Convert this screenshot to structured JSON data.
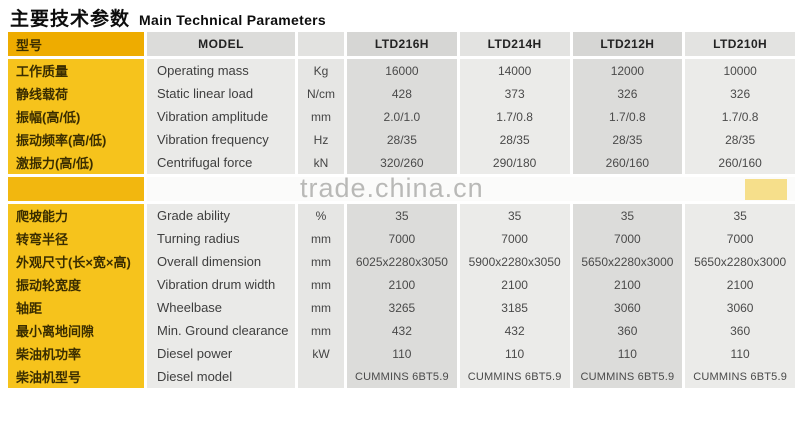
{
  "title": {
    "cn": "主要技术参数",
    "en": "Main Technical Parameters"
  },
  "watermark": "trade.china.cn",
  "colors": {
    "label_column_yellow": "#f6c31c",
    "header_yellow": "#eeac00",
    "column_gray_dark": "#dcdcda",
    "column_gray_light": "#ebebe9",
    "watermark_gray": "#b9b9b7"
  },
  "table": {
    "header": {
      "label_cn": "型号",
      "label_en": "MODEL",
      "unit_label": "",
      "models": [
        "LTD216H",
        "LTD214H",
        "LTD212H",
        "LTD210H"
      ]
    },
    "rows": [
      {
        "cn": "工作质量",
        "en": "Operating mass",
        "unit": "Kg",
        "values": [
          "16000",
          "14000",
          "12000",
          "10000"
        ]
      },
      {
        "cn": "静线载荷",
        "en": "Static linear load",
        "unit": "N/cm",
        "values": [
          "428",
          "373",
          "326",
          "326"
        ]
      },
      {
        "cn": "振幅(高/低)",
        "en": "Vibration amplitude",
        "unit": "mm",
        "values": [
          "2.0/1.0",
          "1.7/0.8",
          "1.7/0.8",
          "1.7/0.8"
        ]
      },
      {
        "cn": "振动频率(高/低)",
        "en": "Vibration frequency",
        "unit": "Hz",
        "values": [
          "28/35",
          "28/35",
          "28/35",
          "28/35"
        ]
      },
      {
        "cn": "激振力(高/低)",
        "en": "Centrifugal force",
        "unit": "kN",
        "values": [
          "320/260",
          "290/180",
          "260/160",
          "260/160"
        ]
      },
      {
        "cn": "爬坡能力",
        "en": "Grade ability",
        "unit": "%",
        "values": [
          "35",
          "35",
          "35",
          "35"
        ]
      },
      {
        "cn": "转弯半径",
        "en": "Turning radius",
        "unit": "mm",
        "values": [
          "7000",
          "7000",
          "7000",
          "7000"
        ]
      },
      {
        "cn": "外观尺寸(长×宽×高)",
        "en": "Overall dimension",
        "unit": "mm",
        "values": [
          "6025x2280x3050",
          "5900x2280x3050",
          "5650x2280x3000",
          "5650x2280x3000"
        ]
      },
      {
        "cn": "振动轮宽度",
        "en": "Vibration drum width",
        "unit": "mm",
        "values": [
          "2100",
          "2100",
          "2100",
          "2100"
        ]
      },
      {
        "cn": "轴距",
        "en": "Wheelbase",
        "unit": "mm",
        "values": [
          "3265",
          "3185",
          "3060",
          "3060"
        ]
      },
      {
        "cn": "最小离地间隙",
        "en": "Min. Ground clearance",
        "unit": "mm",
        "values": [
          "432",
          "432",
          "360",
          "360"
        ]
      },
      {
        "cn": "柴油机功率",
        "en": "Diesel power",
        "unit": "kW",
        "values": [
          "110",
          "110",
          "110",
          "110"
        ]
      },
      {
        "cn": "柴油机型号",
        "en": "Diesel model",
        "unit": "",
        "values": [
          "CUMMINS 6BT5.9",
          "CUMMINS 6BT5.9",
          "CUMMINS 6BT5.9",
          "CUMMINS 6BT5.9"
        ]
      }
    ]
  }
}
